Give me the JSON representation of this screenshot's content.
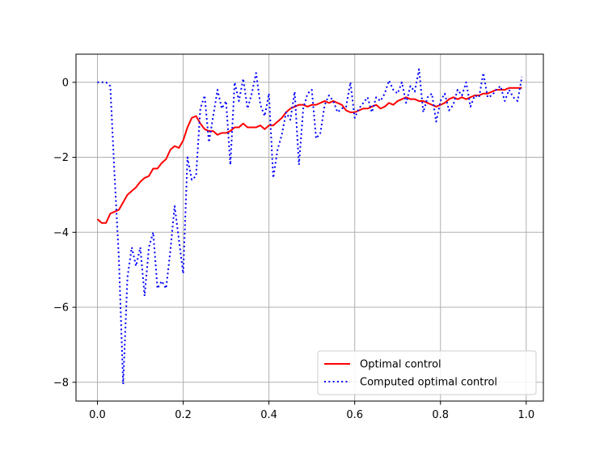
{
  "chart_data": {
    "type": "line",
    "title": "",
    "xlabel": "",
    "ylabel": "",
    "xlim": [
      -0.05,
      1.04
    ],
    "ylim": [
      -8.5,
      0.75
    ],
    "xticks": [
      0.0,
      0.2,
      0.4,
      0.6,
      0.8,
      1.0
    ],
    "xtick_labels": [
      "0.0",
      "0.2",
      "0.4",
      "0.6",
      "0.8",
      "1.0"
    ],
    "yticks": [
      0,
      -2,
      -4,
      -6,
      -8
    ],
    "ytick_labels": [
      "0",
      "−2",
      "−4",
      "−6",
      "−8"
    ],
    "grid": true,
    "legend_position": "lower-right",
    "series": [
      {
        "name": "Optimal control",
        "color": "#ff0000",
        "style": "solid",
        "x": [
          0.0,
          0.01,
          0.02,
          0.03,
          0.04,
          0.05,
          0.06,
          0.07,
          0.08,
          0.09,
          0.1,
          0.11,
          0.12,
          0.13,
          0.14,
          0.15,
          0.16,
          0.17,
          0.18,
          0.19,
          0.2,
          0.21,
          0.22,
          0.23,
          0.24,
          0.25,
          0.26,
          0.27,
          0.28,
          0.29,
          0.3,
          0.31,
          0.32,
          0.33,
          0.34,
          0.35,
          0.36,
          0.37,
          0.38,
          0.39,
          0.4,
          0.41,
          0.42,
          0.43,
          0.44,
          0.45,
          0.46,
          0.47,
          0.48,
          0.49,
          0.5,
          0.51,
          0.52,
          0.53,
          0.54,
          0.55,
          0.56,
          0.57,
          0.58,
          0.59,
          0.6,
          0.61,
          0.62,
          0.63,
          0.64,
          0.65,
          0.66,
          0.67,
          0.68,
          0.69,
          0.7,
          0.71,
          0.72,
          0.73,
          0.74,
          0.75,
          0.76,
          0.77,
          0.78,
          0.79,
          0.8,
          0.81,
          0.82,
          0.83,
          0.84,
          0.85,
          0.86,
          0.87,
          0.88,
          0.89,
          0.9,
          0.91,
          0.92,
          0.93,
          0.94,
          0.95,
          0.96,
          0.97,
          0.98,
          0.99
        ],
        "values": [
          -3.65,
          -3.75,
          -3.75,
          -3.5,
          -3.45,
          -3.4,
          -3.2,
          -3.0,
          -2.9,
          -2.8,
          -2.65,
          -2.55,
          -2.5,
          -2.3,
          -2.3,
          -2.15,
          -2.05,
          -1.8,
          -1.7,
          -1.75,
          -1.55,
          -1.2,
          -0.95,
          -0.9,
          -1.1,
          -1.25,
          -1.3,
          -1.3,
          -1.4,
          -1.35,
          -1.35,
          -1.3,
          -1.2,
          -1.2,
          -1.1,
          -1.2,
          -1.2,
          -1.2,
          -1.15,
          -1.25,
          -1.15,
          -1.15,
          -1.05,
          -0.95,
          -0.8,
          -0.7,
          -0.65,
          -0.6,
          -0.6,
          -0.65,
          -0.6,
          -0.6,
          -0.55,
          -0.5,
          -0.55,
          -0.5,
          -0.55,
          -0.6,
          -0.75,
          -0.8,
          -0.8,
          -0.75,
          -0.7,
          -0.7,
          -0.65,
          -0.6,
          -0.7,
          -0.65,
          -0.55,
          -0.6,
          -0.5,
          -0.45,
          -0.4,
          -0.45,
          -0.45,
          -0.5,
          -0.5,
          -0.55,
          -0.6,
          -0.65,
          -0.6,
          -0.55,
          -0.45,
          -0.4,
          -0.45,
          -0.4,
          -0.45,
          -0.4,
          -0.35,
          -0.35,
          -0.3,
          -0.3,
          -0.25,
          -0.2,
          -0.2,
          -0.2,
          -0.15,
          -0.15,
          -0.15,
          -0.15
        ]
      },
      {
        "name": "Computed optimal control",
        "color": "#0000ff",
        "style": "dotted",
        "x": [
          0.0,
          0.01,
          0.02,
          0.03,
          0.04,
          0.05,
          0.06,
          0.07,
          0.08,
          0.09,
          0.1,
          0.11,
          0.12,
          0.13,
          0.14,
          0.15,
          0.16,
          0.17,
          0.18,
          0.19,
          0.2,
          0.21,
          0.22,
          0.23,
          0.24,
          0.25,
          0.26,
          0.27,
          0.28,
          0.29,
          0.3,
          0.31,
          0.32,
          0.33,
          0.34,
          0.35,
          0.36,
          0.37,
          0.38,
          0.39,
          0.4,
          0.41,
          0.42,
          0.43,
          0.44,
          0.45,
          0.46,
          0.47,
          0.48,
          0.49,
          0.5,
          0.51,
          0.52,
          0.53,
          0.54,
          0.55,
          0.56,
          0.57,
          0.58,
          0.59,
          0.6,
          0.61,
          0.62,
          0.63,
          0.64,
          0.65,
          0.66,
          0.67,
          0.68,
          0.69,
          0.7,
          0.71,
          0.72,
          0.73,
          0.74,
          0.75,
          0.76,
          0.77,
          0.78,
          0.79,
          0.8,
          0.81,
          0.82,
          0.83,
          0.84,
          0.85,
          0.86,
          0.87,
          0.88,
          0.89,
          0.9,
          0.91,
          0.92,
          0.93,
          0.94,
          0.95,
          0.96,
          0.97,
          0.98,
          0.99
        ],
        "values": [
          0.0,
          0.0,
          0.0,
          -0.1,
          -2.5,
          -4.7,
          -8.05,
          -5.2,
          -4.4,
          -4.9,
          -4.4,
          -5.7,
          -4.4,
          -4.0,
          -5.5,
          -5.3,
          -5.5,
          -4.5,
          -3.3,
          -4.2,
          -5.1,
          -2.0,
          -2.6,
          -2.5,
          -0.7,
          -0.35,
          -1.6,
          -0.9,
          -0.2,
          -0.7,
          -0.5,
          -2.2,
          0.0,
          -0.5,
          0.1,
          -0.7,
          -0.3,
          0.25,
          -0.6,
          -0.9,
          -0.3,
          -2.55,
          -1.8,
          -1.4,
          -0.8,
          -1.0,
          -0.25,
          -2.2,
          -0.7,
          -0.3,
          -0.2,
          -1.5,
          -1.35,
          -0.6,
          -0.35,
          -0.5,
          -0.8,
          -0.7,
          -0.65,
          0.0,
          -0.95,
          -0.7,
          -0.55,
          -0.4,
          -0.8,
          -0.4,
          -0.5,
          -0.3,
          0.05,
          -0.2,
          -0.3,
          0.0,
          -0.55,
          -0.1,
          -0.25,
          0.35,
          -0.8,
          -0.4,
          -0.3,
          -1.05,
          -0.5,
          -0.3,
          -0.75,
          -0.6,
          -0.2,
          -0.35,
          0.0,
          -0.65,
          -0.35,
          -0.4,
          0.25,
          -0.4,
          -0.35,
          -0.2,
          -0.1,
          -0.5,
          -0.2,
          -0.4,
          -0.5,
          0.15
        ]
      }
    ]
  }
}
